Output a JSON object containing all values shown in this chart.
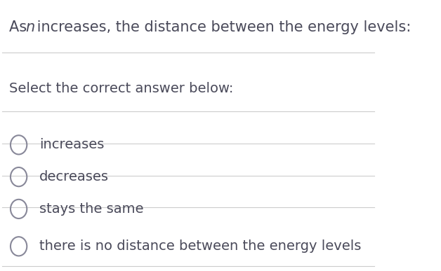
{
  "background_color": "#ffffff",
  "text_color": "#4a4a5a",
  "line_color": "#cccccc",
  "subtitle": "Select the correct answer below:",
  "options": [
    "increases",
    "decreases",
    "stays the same",
    "there is no distance between the energy levels"
  ],
  "title_fontsize": 15,
  "subtitle_fontsize": 14,
  "option_fontsize": 14,
  "circle_color": "#888899",
  "fig_width": 6.28,
  "fig_height": 3.87
}
